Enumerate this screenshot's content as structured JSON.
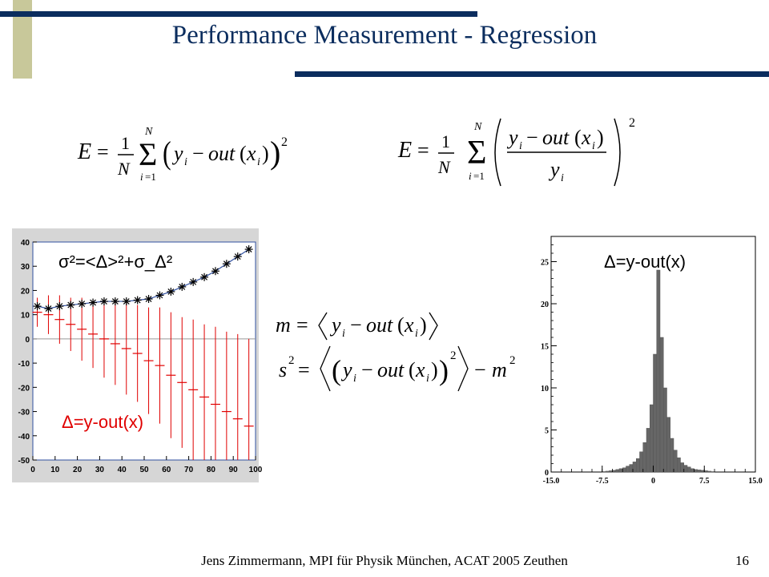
{
  "slide": {
    "title": "Performance Measurement - Regression",
    "footer": "Jens Zimmermann, MPI für Physik München, ACAT 2005 Zeuthen",
    "page_number": "16"
  },
  "formulas": {
    "left_energy": "E = 1/N Σ_{i=1}^{N} (y_i − out(x_i))²",
    "right_energy": "E = 1/N Σ_{i=1}^{N} ((y_i − out(x_i)) / y_i)²",
    "mean": "m = ⟨y_i − out(x_i)⟩",
    "variance": "s² = ⟨(y_i − out(x_i))²⟩ − m²"
  },
  "colors": {
    "title": "#0b2d5e",
    "accent_bar": "#c8c89a",
    "residual_red": "#e00000",
    "sigma_blue": "#3050a0",
    "histogram_fill": "#666666"
  },
  "chart_data": [
    {
      "type": "scatter",
      "title": "",
      "xlim": [
        0,
        100
      ],
      "ylim": [
        -50,
        40
      ],
      "x_ticks": [
        "0",
        "10",
        "20",
        "30",
        "40",
        "50",
        "60",
        "70",
        "80",
        "90",
        "100"
      ],
      "y_ticks": [
        "40",
        "30",
        "20",
        "10",
        "0",
        "-10",
        "-20",
        "-30",
        "-40",
        "-50"
      ],
      "annotations": {
        "sigma_label": "σ²=<Δ>²+σ_Δ²",
        "delta_label": "Δ=y-out(x)"
      },
      "series": [
        {
          "name": "σ²=<Δ>²+σ_Δ²",
          "x": [
            2,
            7,
            12,
            17,
            22,
            27,
            32,
            37,
            42,
            47,
            52,
            57,
            62,
            67,
            72,
            77,
            82,
            87,
            92,
            97
          ],
          "y": [
            13.5,
            12.5,
            13.5,
            14,
            14.5,
            15,
            15.5,
            15.5,
            15.5,
            16,
            16.5,
            18,
            19.5,
            21.5,
            23.5,
            25.5,
            28,
            31,
            34,
            37
          ]
        },
        {
          "name": "Δ=y-out(x)",
          "x": [
            2,
            7,
            12,
            17,
            22,
            27,
            32,
            37,
            42,
            47,
            52,
            57,
            62,
            67,
            72,
            77,
            82,
            87,
            92,
            97
          ],
          "y": [
            11,
            10,
            8,
            6,
            4,
            2,
            0,
            -2,
            -4,
            -6,
            -9,
            -11,
            -15,
            -18,
            -21,
            -24,
            -27,
            -30,
            -33,
            -36
          ],
          "err": [
            6,
            8,
            10,
            11,
            13,
            14,
            16,
            17,
            19,
            20,
            22,
            24,
            26,
            27,
            29,
            30,
            32,
            33,
            35,
            36
          ]
        }
      ]
    },
    {
      "type": "bar",
      "title": "Δ=y-out(x)",
      "xlim": [
        -15,
        15
      ],
      "ylim": [
        0,
        28
      ],
      "x_ticks": [
        "-15.0",
        "-7.5",
        "0",
        "7.5",
        "15.0"
      ],
      "y_ticks": [
        "0",
        "5",
        "10",
        "15",
        "20",
        "25"
      ],
      "bin_width": 0.5,
      "bins_start": -15,
      "values": [
        0,
        0,
        0,
        0,
        0,
        0,
        0,
        0,
        0,
        0,
        0,
        0,
        0,
        0,
        0,
        0.05,
        0.1,
        0.15,
        0.2,
        0.3,
        0.4,
        0.5,
        0.7,
        0.9,
        1.2,
        1.6,
        2.4,
        3.5,
        5.2,
        8.0,
        14.0,
        24.0,
        16.0,
        10.0,
        6.5,
        4.0,
        2.6,
        1.7,
        1.1,
        0.8,
        0.6,
        0.4,
        0.3,
        0.25,
        0.2,
        0.15,
        0.1,
        0.05,
        0,
        0,
        0,
        0,
        0,
        0,
        0,
        0,
        0,
        0,
        0,
        0
      ]
    }
  ]
}
